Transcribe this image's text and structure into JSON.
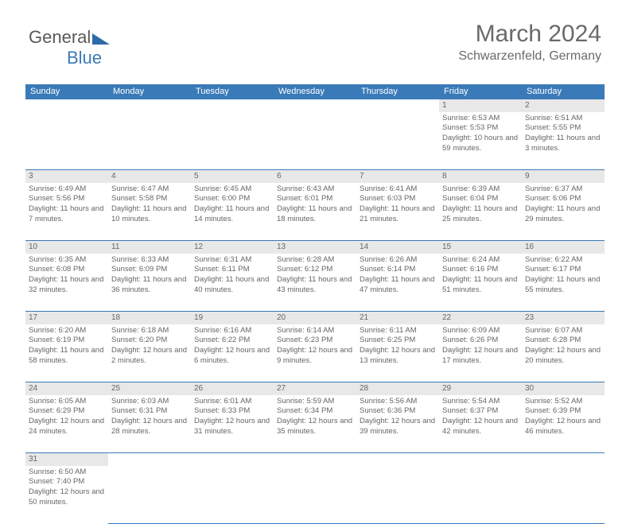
{
  "logo": {
    "text1": "General",
    "text2": "Blue"
  },
  "title": "March 2024",
  "location": "Schwarzenfeld, Germany",
  "daynames": [
    "Sunday",
    "Monday",
    "Tuesday",
    "Wednesday",
    "Thursday",
    "Friday",
    "Saturday"
  ],
  "colors": {
    "header_bg": "#3a7ab8",
    "daynum_bg": "#e8e8e8",
    "text": "#666666"
  },
  "weeks": [
    [
      null,
      null,
      null,
      null,
      null,
      {
        "n": "1",
        "sr": "6:53 AM",
        "ss": "5:53 PM",
        "dl": "10 hours and 59 minutes."
      },
      {
        "n": "2",
        "sr": "6:51 AM",
        "ss": "5:55 PM",
        "dl": "11 hours and 3 minutes."
      }
    ],
    [
      {
        "n": "3",
        "sr": "6:49 AM",
        "ss": "5:56 PM",
        "dl": "11 hours and 7 minutes."
      },
      {
        "n": "4",
        "sr": "6:47 AM",
        "ss": "5:58 PM",
        "dl": "11 hours and 10 minutes."
      },
      {
        "n": "5",
        "sr": "6:45 AM",
        "ss": "6:00 PM",
        "dl": "11 hours and 14 minutes."
      },
      {
        "n": "6",
        "sr": "6:43 AM",
        "ss": "6:01 PM",
        "dl": "11 hours and 18 minutes."
      },
      {
        "n": "7",
        "sr": "6:41 AM",
        "ss": "6:03 PM",
        "dl": "11 hours and 21 minutes."
      },
      {
        "n": "8",
        "sr": "6:39 AM",
        "ss": "6:04 PM",
        "dl": "11 hours and 25 minutes."
      },
      {
        "n": "9",
        "sr": "6:37 AM",
        "ss": "6:06 PM",
        "dl": "11 hours and 29 minutes."
      }
    ],
    [
      {
        "n": "10",
        "sr": "6:35 AM",
        "ss": "6:08 PM",
        "dl": "11 hours and 32 minutes."
      },
      {
        "n": "11",
        "sr": "6:33 AM",
        "ss": "6:09 PM",
        "dl": "11 hours and 36 minutes."
      },
      {
        "n": "12",
        "sr": "6:31 AM",
        "ss": "6:11 PM",
        "dl": "11 hours and 40 minutes."
      },
      {
        "n": "13",
        "sr": "6:28 AM",
        "ss": "6:12 PM",
        "dl": "11 hours and 43 minutes."
      },
      {
        "n": "14",
        "sr": "6:26 AM",
        "ss": "6:14 PM",
        "dl": "11 hours and 47 minutes."
      },
      {
        "n": "15",
        "sr": "6:24 AM",
        "ss": "6:16 PM",
        "dl": "11 hours and 51 minutes."
      },
      {
        "n": "16",
        "sr": "6:22 AM",
        "ss": "6:17 PM",
        "dl": "11 hours and 55 minutes."
      }
    ],
    [
      {
        "n": "17",
        "sr": "6:20 AM",
        "ss": "6:19 PM",
        "dl": "11 hours and 58 minutes."
      },
      {
        "n": "18",
        "sr": "6:18 AM",
        "ss": "6:20 PM",
        "dl": "12 hours and 2 minutes."
      },
      {
        "n": "19",
        "sr": "6:16 AM",
        "ss": "6:22 PM",
        "dl": "12 hours and 6 minutes."
      },
      {
        "n": "20",
        "sr": "6:14 AM",
        "ss": "6:23 PM",
        "dl": "12 hours and 9 minutes."
      },
      {
        "n": "21",
        "sr": "6:11 AM",
        "ss": "6:25 PM",
        "dl": "12 hours and 13 minutes."
      },
      {
        "n": "22",
        "sr": "6:09 AM",
        "ss": "6:26 PM",
        "dl": "12 hours and 17 minutes."
      },
      {
        "n": "23",
        "sr": "6:07 AM",
        "ss": "6:28 PM",
        "dl": "12 hours and 20 minutes."
      }
    ],
    [
      {
        "n": "24",
        "sr": "6:05 AM",
        "ss": "6:29 PM",
        "dl": "12 hours and 24 minutes."
      },
      {
        "n": "25",
        "sr": "6:03 AM",
        "ss": "6:31 PM",
        "dl": "12 hours and 28 minutes."
      },
      {
        "n": "26",
        "sr": "6:01 AM",
        "ss": "6:33 PM",
        "dl": "12 hours and 31 minutes."
      },
      {
        "n": "27",
        "sr": "5:59 AM",
        "ss": "6:34 PM",
        "dl": "12 hours and 35 minutes."
      },
      {
        "n": "28",
        "sr": "5:56 AM",
        "ss": "6:36 PM",
        "dl": "12 hours and 39 minutes."
      },
      {
        "n": "29",
        "sr": "5:54 AM",
        "ss": "6:37 PM",
        "dl": "12 hours and 42 minutes."
      },
      {
        "n": "30",
        "sr": "5:52 AM",
        "ss": "6:39 PM",
        "dl": "12 hours and 46 minutes."
      }
    ],
    [
      {
        "n": "31",
        "sr": "6:50 AM",
        "ss": "7:40 PM",
        "dl": "12 hours and 50 minutes."
      },
      null,
      null,
      null,
      null,
      null,
      null
    ]
  ]
}
